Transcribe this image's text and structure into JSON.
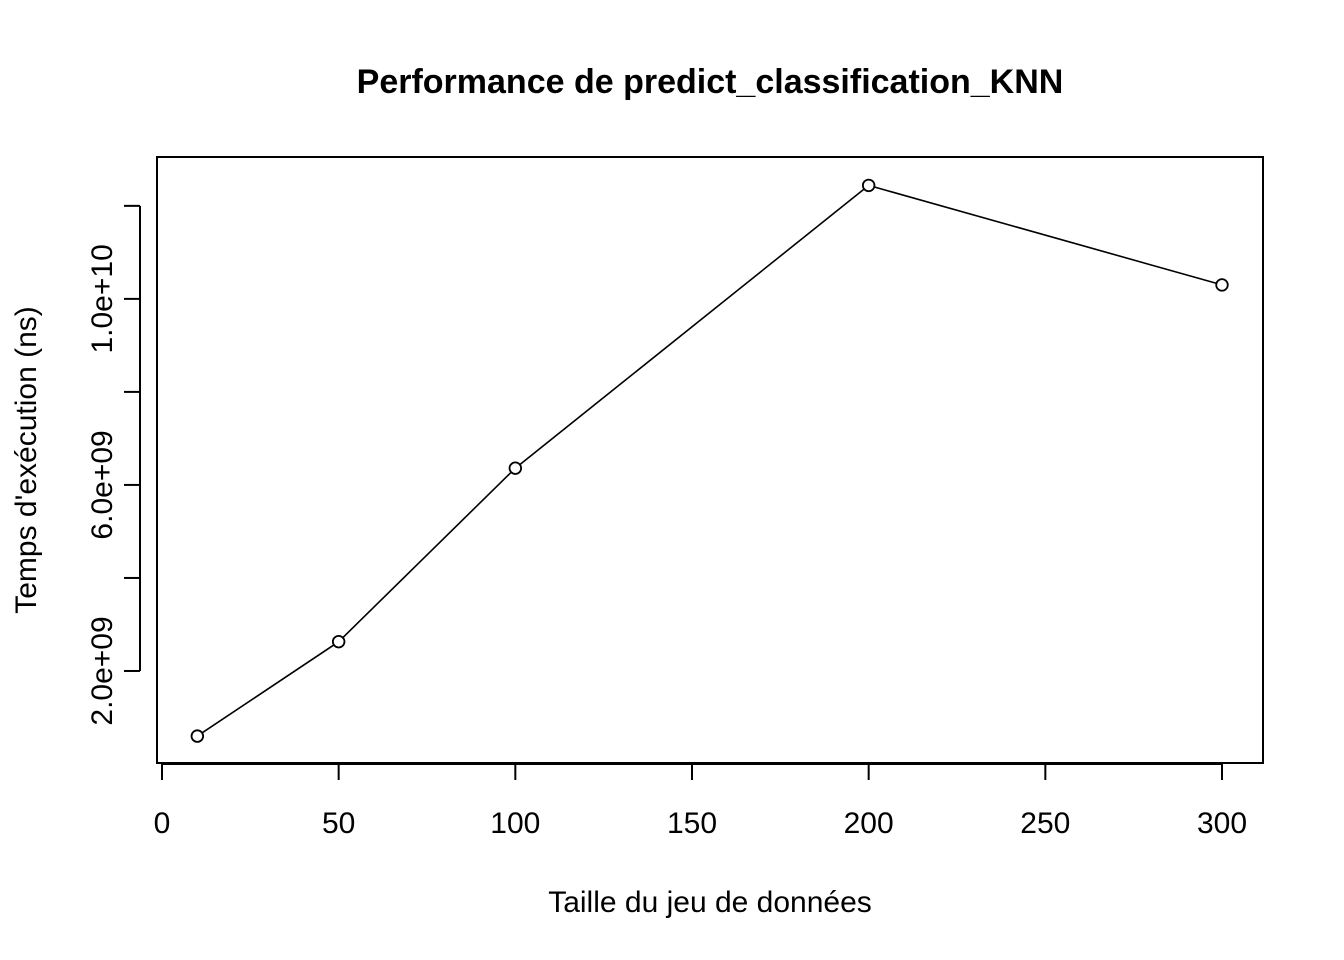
{
  "chart_data": {
    "type": "line",
    "title": "Performance de predict_classification_KNN",
    "xlabel": "Taille du jeu de données",
    "ylabel": "Temps d'exécution (ns)",
    "x": [
      10,
      50,
      100,
      200,
      300
    ],
    "series": [
      {
        "values": [
          600000000,
          2630000000,
          6360000000,
          12440000000,
          10300000000
        ]
      }
    ],
    "xlim": [
      0,
      310
    ],
    "ylim": [
      0,
      13000000000
    ],
    "x_ticks": [
      0,
      50,
      100,
      150,
      200,
      250,
      300
    ],
    "x_tick_labels": [
      "0",
      "50",
      "100",
      "150",
      "200",
      "250",
      "300"
    ],
    "y_ticks": [
      2000000000,
      4000000000,
      6000000000,
      8000000000,
      10000000000,
      12000000000
    ],
    "y_tick_labels": [
      "2.0e+09",
      "",
      "6.0e+09",
      "",
      "1.0e+10",
      ""
    ],
    "grid": false,
    "marker": "open-circle",
    "line_color": "#000000"
  }
}
